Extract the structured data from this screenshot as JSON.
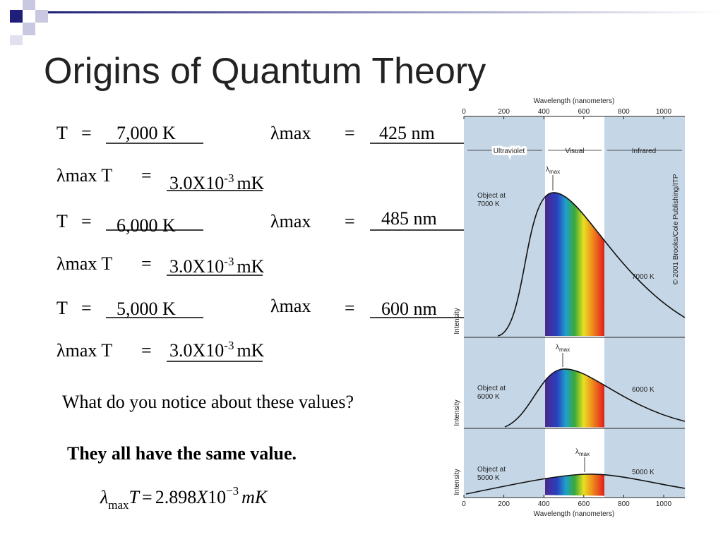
{
  "title": "Origins of Quantum Theory",
  "rows": [
    {
      "lhs": "T",
      "eq": "=",
      "answer": "7,000 K",
      "lhs2": "λmax",
      "eq2": "=",
      "answer2": "425 nm"
    },
    {
      "lhs": "λmax T",
      "eq": "=",
      "mantissa": "3.0X10",
      "exponent": "-3",
      "unit": "mK"
    },
    {
      "lhs": "T",
      "eq": "=",
      "answer": "6,000 K",
      "lhs2": "λmax",
      "eq2": "=",
      "answer2": "485 nm"
    },
    {
      "lhs": "λmax T",
      "eq": "=",
      "mantissa": "3.0X10",
      "exponent": "-3",
      "unit": "mK"
    },
    {
      "lhs": "T",
      "eq": "=",
      "answer": "5,000 K",
      "lhs2": "λmax",
      "eq2": "=",
      "answer2": "600 nm"
    },
    {
      "lhs": "λmax T",
      "eq": "=",
      "mantissa": "3.0X10",
      "exponent": "-3",
      "unit": "mK"
    }
  ],
  "question": "What do you notice about these values?",
  "answer": "They all have the same value.",
  "formula": {
    "symbol": "λ",
    "sub": "max",
    "var": "T",
    "eq": "=",
    "mantissa": "2.898",
    "x": "X",
    "base": "10",
    "exponent": "−3",
    "unit": "mK"
  },
  "figure": {
    "axis_title_top": "Wavelength (nanometers)",
    "axis_title_bottom": "Wavelength (nanometers)",
    "ticks": [
      "0",
      "200",
      "400",
      "600",
      "800",
      "1000"
    ],
    "bands": [
      "Ultraviolet",
      "Visual",
      "Infrared"
    ],
    "copyright": "© 2001 Brooks/Cole Publishing/ITP",
    "panels": [
      {
        "object": "Object at",
        "temp": "7000 K",
        "curve_label": "7000 K",
        "lambda": "λ",
        "lambda_sub": "max",
        "y_label": "Intensity"
      },
      {
        "object": "Object at",
        "temp": "6000 K",
        "curve_label": "6000 K",
        "lambda": "λ",
        "lambda_sub": "max",
        "y_label": "Intensity"
      },
      {
        "object": "Object at",
        "temp": "5000 K",
        "curve_label": "5000 K",
        "lambda": "λ",
        "lambda_sub": "max",
        "y_label": "Intensity"
      }
    ]
  }
}
